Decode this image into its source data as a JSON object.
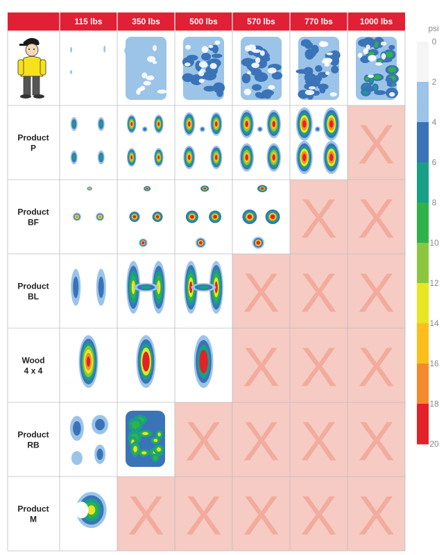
{
  "chart_data": {
    "type": "heatmap",
    "title": "",
    "xlabel": "",
    "ylabel": "",
    "columns": [
      "115 lbs",
      "350 lbs",
      "500 lbs",
      "570 lbs",
      "770 lbs",
      "1000 lbs"
    ],
    "rows": [
      {
        "label_line1": "",
        "label_line2": "",
        "picture": "person-with-cap-illustration"
      },
      {
        "label_line1": "Product",
        "label_line2": "P"
      },
      {
        "label_line1": "Product",
        "label_line2": "BF"
      },
      {
        "label_line1": "Product",
        "label_line2": "BL"
      },
      {
        "label_line1": "Wood",
        "label_line2": "4 x 4"
      },
      {
        "label_line1": "Product",
        "label_line2": "RB"
      },
      {
        "label_line1": "Product",
        "label_line2": "M"
      }
    ],
    "tested_columns_per_row": [
      6,
      5,
      4,
      3,
      3,
      2,
      1
    ],
    "failed_cell_mark": "X",
    "legend": {
      "unit": "psi",
      "ticks": [
        0,
        2,
        4,
        6,
        8,
        10,
        12,
        14,
        16,
        18,
        20
      ],
      "placement": "right",
      "colors": [
        "#f5f5f5",
        "#9bc4e8",
        "#3a73b8",
        "#17a085",
        "#2fb24a",
        "#8cc63f",
        "#e8e620",
        "#fbbf1a",
        "#f58a2a",
        "#e32128"
      ]
    },
    "colors": {
      "header": "#e11f35",
      "failed_cell": "#f6cbc4",
      "failed_x": "#f2ab9c",
      "grid_line": "#bcbcbc"
    }
  }
}
